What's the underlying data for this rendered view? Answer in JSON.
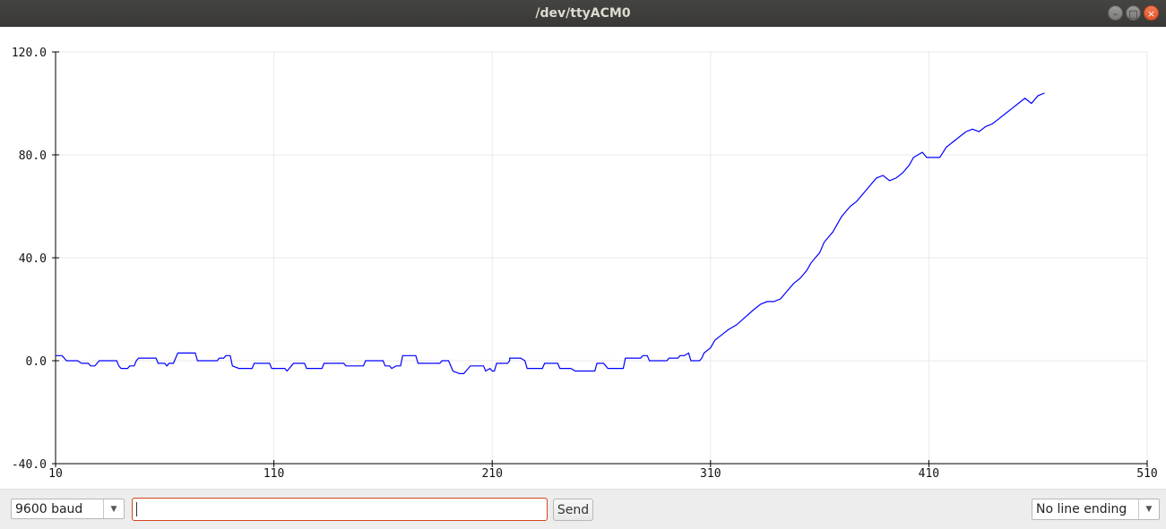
{
  "window": {
    "title": "/dev/ttyACM0",
    "buttons": [
      "minimize",
      "maximize",
      "close"
    ]
  },
  "toolbar": {
    "baud_value": "9600 baud",
    "message_value": "",
    "send_label": "Send",
    "line_ending_value": "No line ending"
  },
  "colors": {
    "line": "#0000ff",
    "grid": "#e9e9e9",
    "axis": "#000000",
    "input_border": "#d0461d"
  },
  "chart_data": {
    "type": "line",
    "title": "",
    "xlabel": "",
    "ylabel": "",
    "xlim": [
      10,
      510
    ],
    "ylim": [
      -40,
      120
    ],
    "xticks": [
      10,
      110,
      210,
      310,
      410,
      510
    ],
    "xtick_labels": [
      "10",
      "110",
      "210",
      "310",
      "410",
      "510"
    ],
    "yticks": [
      -40,
      0,
      40,
      80,
      120
    ],
    "ytick_labels": [
      "-40.0",
      "0.0",
      "40.0",
      "80.0",
      "120.0"
    ],
    "grid": true,
    "series": [
      {
        "points": [
          [
            10,
            2
          ],
          [
            13,
            2
          ],
          [
            15,
            0
          ],
          [
            20,
            0
          ],
          [
            22,
            -1
          ],
          [
            25,
            -1
          ],
          [
            26,
            -2
          ],
          [
            28,
            -2
          ],
          [
            29,
            -1
          ],
          [
            30,
            0
          ],
          [
            38,
            0
          ],
          [
            39,
            -2
          ],
          [
            40,
            -3
          ],
          [
            43,
            -3
          ],
          [
            44,
            -2
          ],
          [
            46,
            -2
          ],
          [
            47,
            0
          ],
          [
            48,
            1
          ],
          [
            56,
            1
          ],
          [
            57,
            -1
          ],
          [
            60,
            -1
          ],
          [
            61,
            -2
          ],
          [
            62,
            -1
          ],
          [
            64,
            -1
          ],
          [
            66,
            3
          ],
          [
            74,
            3
          ],
          [
            75,
            0
          ],
          [
            84,
            0
          ],
          [
            85,
            1
          ],
          [
            87,
            1
          ],
          [
            88,
            2
          ],
          [
            90,
            2
          ],
          [
            91,
            -2
          ],
          [
            94,
            -3
          ],
          [
            100,
            -3
          ],
          [
            101,
            -1
          ],
          [
            108,
            -1
          ],
          [
            109,
            -3
          ],
          [
            115,
            -3
          ],
          [
            116,
            -4
          ],
          [
            117,
            -3
          ],
          [
            118,
            -2
          ],
          [
            119,
            -1
          ],
          [
            124,
            -1
          ],
          [
            125,
            -3
          ],
          [
            132,
            -3
          ],
          [
            133,
            -1
          ],
          [
            142,
            -1
          ],
          [
            143,
            -2
          ],
          [
            151,
            -2
          ],
          [
            152,
            0
          ],
          [
            160,
            0
          ],
          [
            161,
            -2
          ],
          [
            163,
            -2
          ],
          [
            164,
            -3
          ],
          [
            166,
            -2
          ],
          [
            168,
            -2
          ],
          [
            169,
            2
          ],
          [
            175,
            2
          ],
          [
            176,
            -1
          ],
          [
            186,
            -1
          ],
          [
            187,
            0
          ],
          [
            190,
            0
          ],
          [
            192,
            -4
          ],
          [
            195,
            -5
          ],
          [
            197,
            -5
          ],
          [
            198,
            -4
          ],
          [
            200,
            -2
          ],
          [
            202,
            -2
          ],
          [
            206,
            -2
          ],
          [
            207,
            -4
          ],
          [
            209,
            -3
          ],
          [
            210,
            -4
          ],
          [
            211,
            -4
          ],
          [
            212,
            -1
          ],
          [
            217,
            -1
          ],
          [
            218,
            0
          ],
          [
            218,
            1
          ],
          [
            223,
            1
          ],
          [
            225,
            0
          ],
          [
            226,
            -3
          ],
          [
            233,
            -3
          ],
          [
            234,
            -1
          ],
          [
            240,
            -1
          ],
          [
            241,
            -3
          ],
          [
            246,
            -3
          ],
          [
            248,
            -4
          ],
          [
            250,
            -4
          ],
          [
            251,
            -4
          ],
          [
            257,
            -4
          ],
          [
            258,
            -1
          ],
          [
            261,
            -1
          ],
          [
            262,
            -2
          ],
          [
            263,
            -3
          ],
          [
            270,
            -3
          ],
          [
            271,
            1
          ],
          [
            278,
            1
          ],
          [
            279,
            2
          ],
          [
            281,
            2
          ],
          [
            282,
            0
          ],
          [
            290,
            0
          ],
          [
            291,
            1
          ],
          [
            295,
            1
          ],
          [
            296,
            2
          ],
          [
            298,
            2
          ],
          [
            300,
            3
          ],
          [
            301,
            0
          ],
          [
            305,
            0
          ],
          [
            306,
            1
          ],
          [
            307,
            3
          ],
          [
            310,
            5
          ],
          [
            312,
            8
          ],
          [
            315,
            10
          ],
          [
            318,
            12
          ],
          [
            322,
            14
          ],
          [
            326,
            17
          ],
          [
            330,
            20
          ],
          [
            333,
            22
          ],
          [
            336,
            23
          ],
          [
            339,
            23
          ],
          [
            342,
            24
          ],
          [
            345,
            27
          ],
          [
            348,
            30
          ],
          [
            351,
            32
          ],
          [
            354,
            35
          ],
          [
            356,
            38
          ],
          [
            358,
            40
          ],
          [
            360,
            42
          ],
          [
            362,
            46
          ],
          [
            364,
            48
          ],
          [
            366,
            50
          ],
          [
            368,
            53
          ],
          [
            370,
            56
          ],
          [
            372,
            58
          ],
          [
            374,
            60
          ],
          [
            377,
            62
          ],
          [
            380,
            65
          ],
          [
            383,
            68
          ],
          [
            386,
            71
          ],
          [
            389,
            72
          ],
          [
            392,
            70
          ],
          [
            395,
            71
          ],
          [
            398,
            73
          ],
          [
            401,
            76
          ],
          [
            403,
            79
          ],
          [
            405,
            80
          ],
          [
            407,
            81
          ],
          [
            409,
            79
          ],
          [
            411,
            79
          ],
          [
            415,
            79
          ],
          [
            418,
            83
          ],
          [
            421,
            85
          ],
          [
            424,
            87
          ],
          [
            427,
            89
          ],
          [
            430,
            90
          ],
          [
            433,
            89
          ],
          [
            436,
            91
          ],
          [
            439,
            92
          ],
          [
            442,
            94
          ],
          [
            445,
            96
          ],
          [
            448,
            98
          ],
          [
            451,
            100
          ],
          [
            454,
            102
          ],
          [
            457,
            100
          ],
          [
            460,
            103
          ],
          [
            463,
            104
          ]
        ]
      }
    ]
  }
}
